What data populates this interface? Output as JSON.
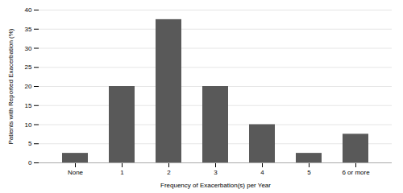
{
  "chart_data": {
    "type": "bar",
    "categories": [
      "None",
      "1",
      "2",
      "3",
      "4",
      "5",
      "6 or more"
    ],
    "values": [
      2.5,
      20.0,
      37.5,
      20.0,
      10.0,
      2.5,
      7.5
    ],
    "color": "#595959",
    "xlabel": "Frequency of Exacerbation(s) per Year",
    "ylabel": "Patients with Reported Exacerbation (%)",
    "ylim": [
      0,
      40
    ],
    "yticks": [
      0,
      5,
      10,
      15,
      20,
      25,
      30,
      35,
      40
    ],
    "grid": true
  }
}
